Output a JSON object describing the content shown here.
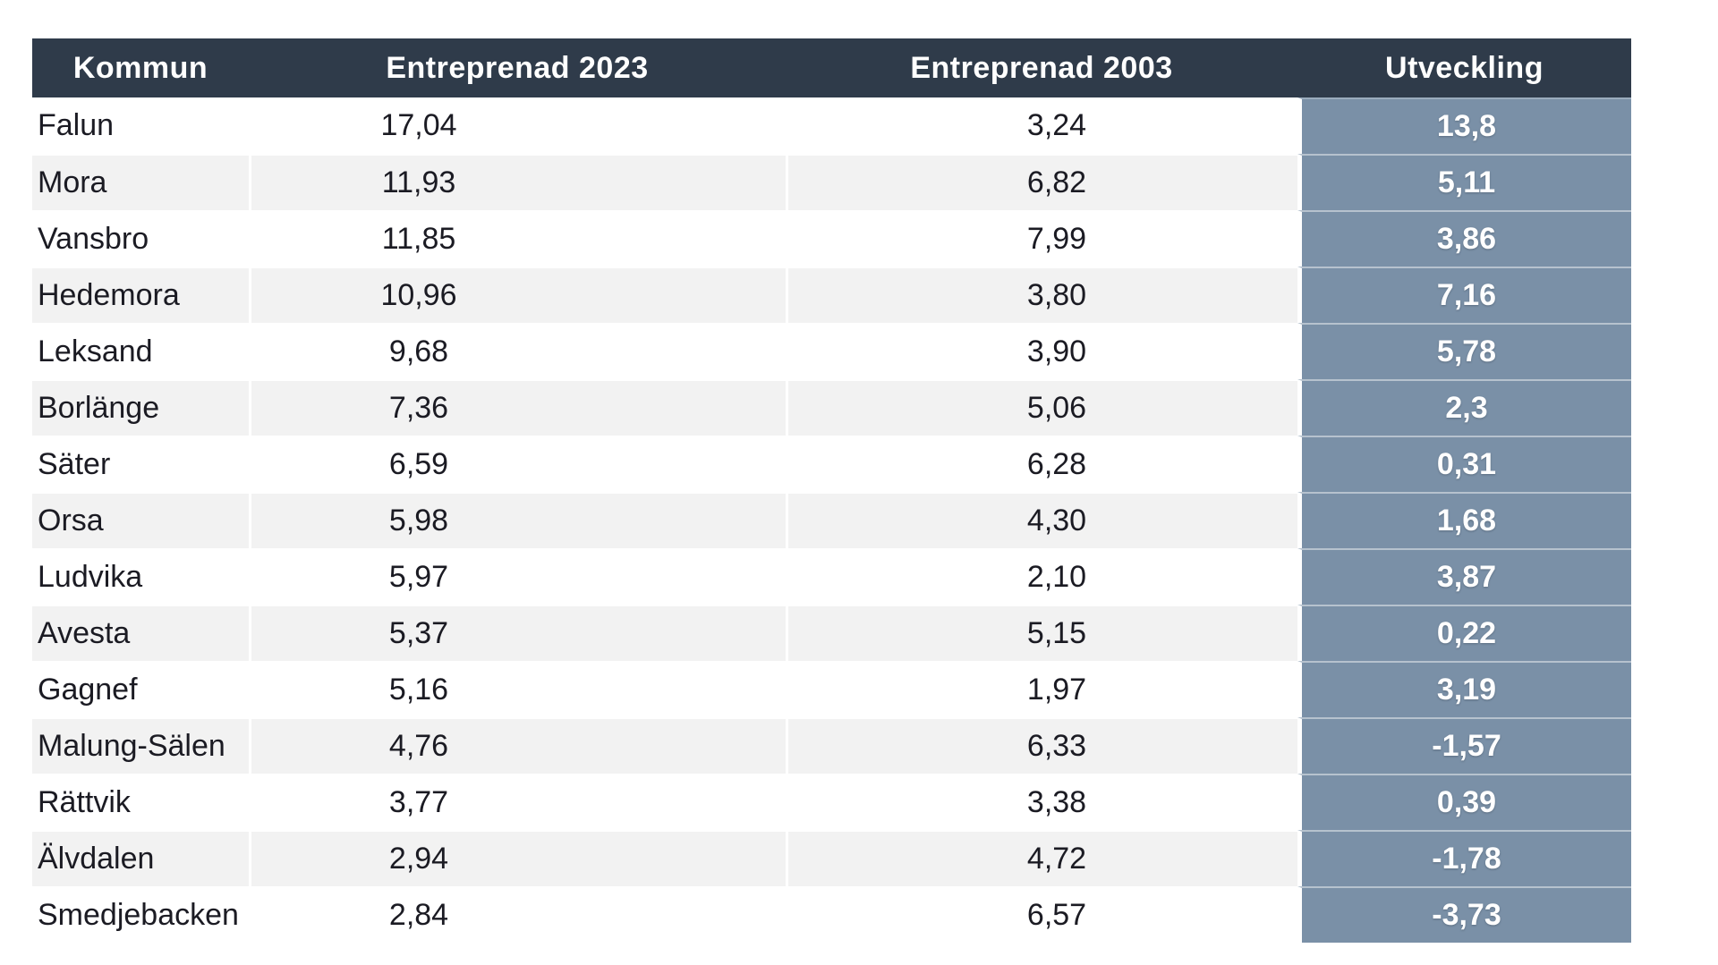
{
  "chart_data": {
    "type": "table",
    "columns": [
      "Kommun",
      "Entreprenad 2023",
      "Entreprenad 2003",
      "Utveckling"
    ],
    "rows": [
      [
        "Falun",
        "17,04",
        "3,24",
        "13,8"
      ],
      [
        "Mora",
        "11,93",
        "6,82",
        "5,11"
      ],
      [
        "Vansbro",
        "11,85",
        "7,99",
        "3,86"
      ],
      [
        "Hedemora",
        "10,96",
        "3,80",
        "7,16"
      ],
      [
        "Leksand",
        "9,68",
        "3,90",
        "5,78"
      ],
      [
        "Borlänge",
        "7,36",
        "5,06",
        "2,3"
      ],
      [
        "Säter",
        "6,59",
        "6,28",
        "0,31"
      ],
      [
        "Orsa",
        "5,98",
        "4,30",
        "1,68"
      ],
      [
        "Ludvika",
        "5,97",
        "2,10",
        "3,87"
      ],
      [
        "Avesta",
        "5,37",
        "5,15",
        "0,22"
      ],
      [
        "Gagnef",
        "5,16",
        "1,97",
        "3,19"
      ],
      [
        "Malung-Sälen",
        "4,76",
        "6,33",
        "-1,57"
      ],
      [
        "Rättvik",
        "3,77",
        "3,38",
        "0,39"
      ],
      [
        "Älvdalen",
        "2,94",
        "4,72",
        "-1,78"
      ],
      [
        "Smedjebacken",
        "2,84",
        "6,57",
        "-3,73"
      ]
    ],
    "layout_hints": {
      "zebra_striping": true,
      "accent_column": "Utveckling",
      "first_data_row_background": "white"
    }
  },
  "colors": {
    "page_bg": "#FFFFFF",
    "header_bg": "#2F3B4A",
    "header_text": "#FFFFFF",
    "accent_bg": "#7A90A7",
    "accent_text": "#FFFFFF",
    "stripe_bg": "#F2F2F2",
    "body_text": "#1B1B23"
  }
}
